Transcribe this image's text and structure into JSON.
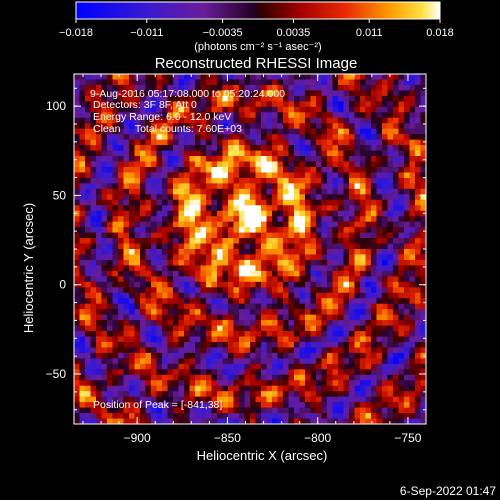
{
  "chart_data": {
    "type": "heatmap",
    "title": "Reconstructed RHESSI Image",
    "xlabel": "Heliocentric X (arcsec)",
    "ylabel": "Heliocentric Y (arcsec)",
    "xlim": [
      -935,
      -740
    ],
    "ylim": [
      -78,
      118
    ],
    "xticks": [
      -900,
      -850,
      -800,
      -750
    ],
    "xtick_labels": [
      "−900",
      "−850",
      "−800",
      "−750"
    ],
    "yticks": [
      100,
      50,
      0,
      -50
    ],
    "ytick_labels": [
      "100",
      "50",
      "0",
      "−50"
    ],
    "colorbar": {
      "min": -0.018,
      "max": 0.018,
      "ticks": [
        -0.018,
        -0.011,
        -0.0035,
        0.0035,
        0.011,
        0.018
      ],
      "tick_labels": [
        "−0.018",
        "−0.011",
        "−0.0035",
        "0.0035",
        "0.011",
        "0.018"
      ],
      "unit_label": "(photons cm⁻² s⁻¹ asec⁻²)"
    },
    "annotations": [
      "9-Aug-2016 05:17:08.000 to 05:20:24.000",
      "Detectors: 3F 8F, Att 0",
      "Energy Range: 6.0 - 12.0 keV",
      "Clean     Total counts: 7.60E+03"
    ],
    "peak_label": "Position of Peak = [-841,38]",
    "peak": {
      "x": -841,
      "y": 38
    },
    "grid": false
  },
  "footer": {
    "timestamp": "6-Sep-2022 01:47"
  },
  "colors": {
    "background": "#000000",
    "foreground": "#ffffff",
    "colormap": [
      "#0000ff",
      "#4b0f8a",
      "#7a1fa0",
      "#000000",
      "#a00000",
      "#e02000",
      "#ff7f00",
      "#ffd020",
      "#ffffff"
    ]
  }
}
